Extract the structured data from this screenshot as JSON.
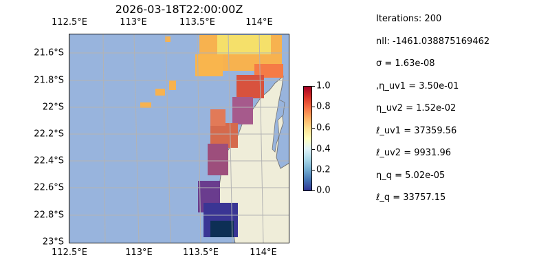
{
  "title": "2026-03-18T22:00:00Z",
  "map": {
    "lon_ticks": [
      "112.5°E",
      "113°E",
      "113.5°E",
      "114°E"
    ],
    "lat_ticks": [
      "21.6°S",
      "21.8°S",
      "22°S",
      "22.2°S",
      "22.4°S",
      "22.6°S",
      "22.8°S",
      "23°S"
    ],
    "lon_range": [
      112.5,
      114.2
    ],
    "lat_range": [
      -23.0,
      -21.45
    ],
    "colors": {
      "ocean": "#98b4dd",
      "land": "#efedd9",
      "coast": "#777777",
      "grid": "#b3b3b3"
    }
  },
  "colorbar": {
    "ticks": [
      "1.0",
      "0.8",
      "0.6",
      "0.4",
      "0.2",
      "0.0"
    ],
    "colormap": "RdYlBu_r"
  },
  "params": [
    "Iterations: 200",
    "nll: -1461.038875169462",
    "σ = 1.63e-08",
    ",η_uv1 = 3.50e-01",
    "η_uv2 = 1.52e-02",
    "ℓ_uv1 = 37359.56",
    "ℓ_uv2 = 9931.96",
    "η_q = 5.02e-05",
    "ℓ_q = 33757.15"
  ]
}
